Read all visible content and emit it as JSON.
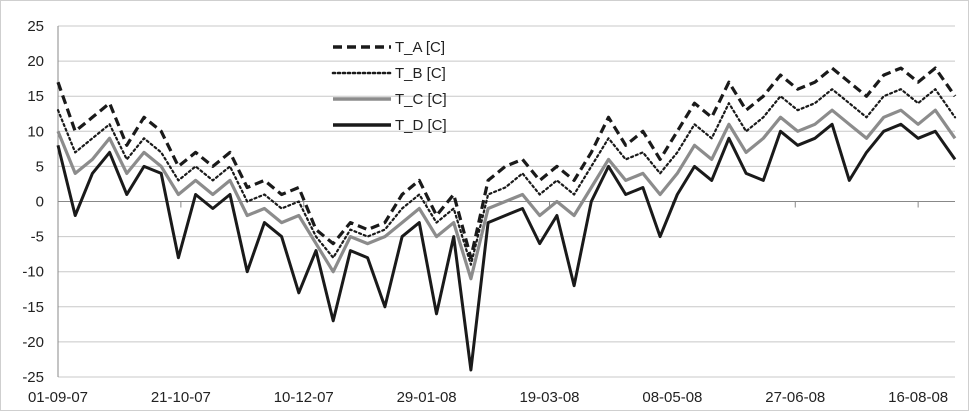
{
  "chart_data": {
    "type": "line",
    "title": "",
    "xlabel": "",
    "ylabel": "",
    "ylim": [
      -25,
      25
    ],
    "yticks": [
      -25,
      -20,
      -15,
      -10,
      -5,
      0,
      5,
      10,
      15,
      20,
      25
    ],
    "xticks": [
      "01-09-07",
      "21-10-07",
      "10-12-07",
      "29-01-08",
      "19-03-08",
      "08-05-08",
      "27-06-08",
      "16-08-08"
    ],
    "x_start": "01-09-07",
    "x_end": "31-08-08",
    "grid": "horizontal",
    "legend_placement": "top-center",
    "series": [
      {
        "name": "T_A [C]",
        "style": "dashed",
        "color": "#1a1a1a",
        "points": [
          [
            "01-09-07",
            17
          ],
          [
            "08-09-07",
            10
          ],
          [
            "15-09-07",
            12
          ],
          [
            "22-09-07",
            14
          ],
          [
            "29-09-07",
            8
          ],
          [
            "06-10-07",
            12
          ],
          [
            "13-10-07",
            10
          ],
          [
            "20-10-07",
            5
          ],
          [
            "27-10-07",
            7
          ],
          [
            "03-11-07",
            5
          ],
          [
            "10-11-07",
            7
          ],
          [
            "17-11-07",
            2
          ],
          [
            "24-11-07",
            3
          ],
          [
            "01-12-07",
            1
          ],
          [
            "08-12-07",
            2
          ],
          [
            "15-12-07",
            -4
          ],
          [
            "22-12-07",
            -6
          ],
          [
            "29-12-07",
            -3
          ],
          [
            "05-01-08",
            -4
          ],
          [
            "12-01-08",
            -3
          ],
          [
            "19-01-08",
            1
          ],
          [
            "26-01-08",
            3
          ],
          [
            "02-02-08",
            -2
          ],
          [
            "09-02-08",
            1
          ],
          [
            "16-02-08",
            -8
          ],
          [
            "23-02-08",
            3
          ],
          [
            "01-03-08",
            5
          ],
          [
            "08-03-08",
            6
          ],
          [
            "15-03-08",
            3
          ],
          [
            "22-03-08",
            5
          ],
          [
            "29-03-08",
            3
          ],
          [
            "05-04-08",
            7
          ],
          [
            "12-04-08",
            12
          ],
          [
            "19-04-08",
            8
          ],
          [
            "26-04-08",
            10
          ],
          [
            "03-05-08",
            6
          ],
          [
            "10-05-08",
            10
          ],
          [
            "17-05-08",
            14
          ],
          [
            "24-05-08",
            12
          ],
          [
            "31-05-08",
            17
          ],
          [
            "07-06-08",
            13
          ],
          [
            "14-06-08",
            15
          ],
          [
            "21-06-08",
            18
          ],
          [
            "28-06-08",
            16
          ],
          [
            "05-07-08",
            17
          ],
          [
            "12-07-08",
            19
          ],
          [
            "19-07-08",
            17
          ],
          [
            "26-07-08",
            15
          ],
          [
            "02-08-08",
            18
          ],
          [
            "09-08-08",
            19
          ],
          [
            "16-08-08",
            17
          ],
          [
            "23-08-08",
            19
          ],
          [
            "31-08-08",
            15
          ]
        ]
      },
      {
        "name": "T_B [C]",
        "style": "dotted",
        "color": "#1a1a1a",
        "points": [
          [
            "01-09-07",
            13
          ],
          [
            "08-09-07",
            7
          ],
          [
            "15-09-07",
            9
          ],
          [
            "22-09-07",
            11
          ],
          [
            "29-09-07",
            6
          ],
          [
            "06-10-07",
            9
          ],
          [
            "13-10-07",
            7
          ],
          [
            "20-10-07",
            3
          ],
          [
            "27-10-07",
            5
          ],
          [
            "03-11-07",
            3
          ],
          [
            "10-11-07",
            5
          ],
          [
            "17-11-07",
            0
          ],
          [
            "24-11-07",
            1
          ],
          [
            "01-12-07",
            -1
          ],
          [
            "08-12-07",
            0
          ],
          [
            "15-12-07",
            -5
          ],
          [
            "22-12-07",
            -8
          ],
          [
            "29-12-07",
            -4
          ],
          [
            "05-01-08",
            -5
          ],
          [
            "12-01-08",
            -4
          ],
          [
            "19-01-08",
            -1
          ],
          [
            "26-01-08",
            1
          ],
          [
            "02-02-08",
            -3
          ],
          [
            "09-02-08",
            -1
          ],
          [
            "16-02-08",
            -9
          ],
          [
            "23-02-08",
            1
          ],
          [
            "01-03-08",
            2
          ],
          [
            "08-03-08",
            4
          ],
          [
            "15-03-08",
            1
          ],
          [
            "22-03-08",
            3
          ],
          [
            "29-03-08",
            1
          ],
          [
            "05-04-08",
            5
          ],
          [
            "12-04-08",
            9
          ],
          [
            "19-04-08",
            6
          ],
          [
            "26-04-08",
            7
          ],
          [
            "03-05-08",
            4
          ],
          [
            "10-05-08",
            7
          ],
          [
            "17-05-08",
            11
          ],
          [
            "24-05-08",
            9
          ],
          [
            "31-05-08",
            14
          ],
          [
            "07-06-08",
            10
          ],
          [
            "14-06-08",
            12
          ],
          [
            "21-06-08",
            15
          ],
          [
            "28-06-08",
            13
          ],
          [
            "05-07-08",
            14
          ],
          [
            "12-07-08",
            16
          ],
          [
            "19-07-08",
            14
          ],
          [
            "26-07-08",
            12
          ],
          [
            "02-08-08",
            15
          ],
          [
            "09-08-08",
            16
          ],
          [
            "16-08-08",
            14
          ],
          [
            "23-08-08",
            16
          ],
          [
            "31-08-08",
            12
          ]
        ]
      },
      {
        "name": "T_C [C]",
        "style": "solid",
        "color": "#8c8c8c",
        "points": [
          [
            "01-09-07",
            10
          ],
          [
            "08-09-07",
            4
          ],
          [
            "15-09-07",
            6
          ],
          [
            "22-09-07",
            9
          ],
          [
            "29-09-07",
            4
          ],
          [
            "06-10-07",
            7
          ],
          [
            "13-10-07",
            5
          ],
          [
            "20-10-07",
            1
          ],
          [
            "27-10-07",
            3
          ],
          [
            "03-11-07",
            1
          ],
          [
            "10-11-07",
            3
          ],
          [
            "17-11-07",
            -2
          ],
          [
            "24-11-07",
            -1
          ],
          [
            "01-12-07",
            -3
          ],
          [
            "08-12-07",
            -2
          ],
          [
            "15-12-07",
            -6
          ],
          [
            "22-12-07",
            -10
          ],
          [
            "29-12-07",
            -5
          ],
          [
            "05-01-08",
            -6
          ],
          [
            "12-01-08",
            -5
          ],
          [
            "19-01-08",
            -3
          ],
          [
            "26-01-08",
            -1
          ],
          [
            "02-02-08",
            -5
          ],
          [
            "09-02-08",
            -3
          ],
          [
            "16-02-08",
            -11
          ],
          [
            "23-02-08",
            -1
          ],
          [
            "01-03-08",
            0
          ],
          [
            "08-03-08",
            1
          ],
          [
            "15-03-08",
            -2
          ],
          [
            "22-03-08",
            0
          ],
          [
            "29-03-08",
            -2
          ],
          [
            "05-04-08",
            2
          ],
          [
            "12-04-08",
            6
          ],
          [
            "19-04-08",
            3
          ],
          [
            "26-04-08",
            4
          ],
          [
            "03-05-08",
            1
          ],
          [
            "10-05-08",
            4
          ],
          [
            "17-05-08",
            8
          ],
          [
            "24-05-08",
            6
          ],
          [
            "31-05-08",
            11
          ],
          [
            "07-06-08",
            7
          ],
          [
            "14-06-08",
            9
          ],
          [
            "21-06-08",
            12
          ],
          [
            "28-06-08",
            10
          ],
          [
            "05-07-08",
            11
          ],
          [
            "12-07-08",
            13
          ],
          [
            "19-07-08",
            11
          ],
          [
            "26-07-08",
            9
          ],
          [
            "02-08-08",
            12
          ],
          [
            "09-08-08",
            13
          ],
          [
            "16-08-08",
            11
          ],
          [
            "23-08-08",
            13
          ],
          [
            "31-08-08",
            9
          ]
        ]
      },
      {
        "name": "T_D [C]",
        "style": "solid",
        "color": "#1a1a1a",
        "points": [
          [
            "01-09-07",
            8
          ],
          [
            "08-09-07",
            -2
          ],
          [
            "15-09-07",
            4
          ],
          [
            "22-09-07",
            7
          ],
          [
            "29-09-07",
            1
          ],
          [
            "06-10-07",
            5
          ],
          [
            "13-10-07",
            4
          ],
          [
            "20-10-07",
            -8
          ],
          [
            "27-10-07",
            1
          ],
          [
            "03-11-07",
            -1
          ],
          [
            "10-11-07",
            1
          ],
          [
            "17-11-07",
            -10
          ],
          [
            "24-11-07",
            -3
          ],
          [
            "01-12-07",
            -5
          ],
          [
            "08-12-07",
            -13
          ],
          [
            "15-12-07",
            -7
          ],
          [
            "22-12-07",
            -17
          ],
          [
            "29-12-07",
            -7
          ],
          [
            "05-01-08",
            -8
          ],
          [
            "12-01-08",
            -15
          ],
          [
            "19-01-08",
            -5
          ],
          [
            "26-01-08",
            -3
          ],
          [
            "02-02-08",
            -16
          ],
          [
            "09-02-08",
            -5
          ],
          [
            "16-02-08",
            -24
          ],
          [
            "23-02-08",
            -3
          ],
          [
            "01-03-08",
            -2
          ],
          [
            "08-03-08",
            -1
          ],
          [
            "15-03-08",
            -6
          ],
          [
            "22-03-08",
            -2
          ],
          [
            "29-03-08",
            -12
          ],
          [
            "05-04-08",
            0
          ],
          [
            "12-04-08",
            5
          ],
          [
            "19-04-08",
            1
          ],
          [
            "26-04-08",
            2
          ],
          [
            "03-05-08",
            -5
          ],
          [
            "10-05-08",
            1
          ],
          [
            "17-05-08",
            5
          ],
          [
            "24-05-08",
            3
          ],
          [
            "31-05-08",
            9
          ],
          [
            "07-06-08",
            4
          ],
          [
            "14-06-08",
            3
          ],
          [
            "21-06-08",
            10
          ],
          [
            "28-06-08",
            8
          ],
          [
            "05-07-08",
            9
          ],
          [
            "12-07-08",
            11
          ],
          [
            "19-07-08",
            3
          ],
          [
            "26-07-08",
            7
          ],
          [
            "02-08-08",
            10
          ],
          [
            "09-08-08",
            11
          ],
          [
            "16-08-08",
            9
          ],
          [
            "23-08-08",
            10
          ],
          [
            "31-08-08",
            6
          ]
        ]
      }
    ]
  }
}
